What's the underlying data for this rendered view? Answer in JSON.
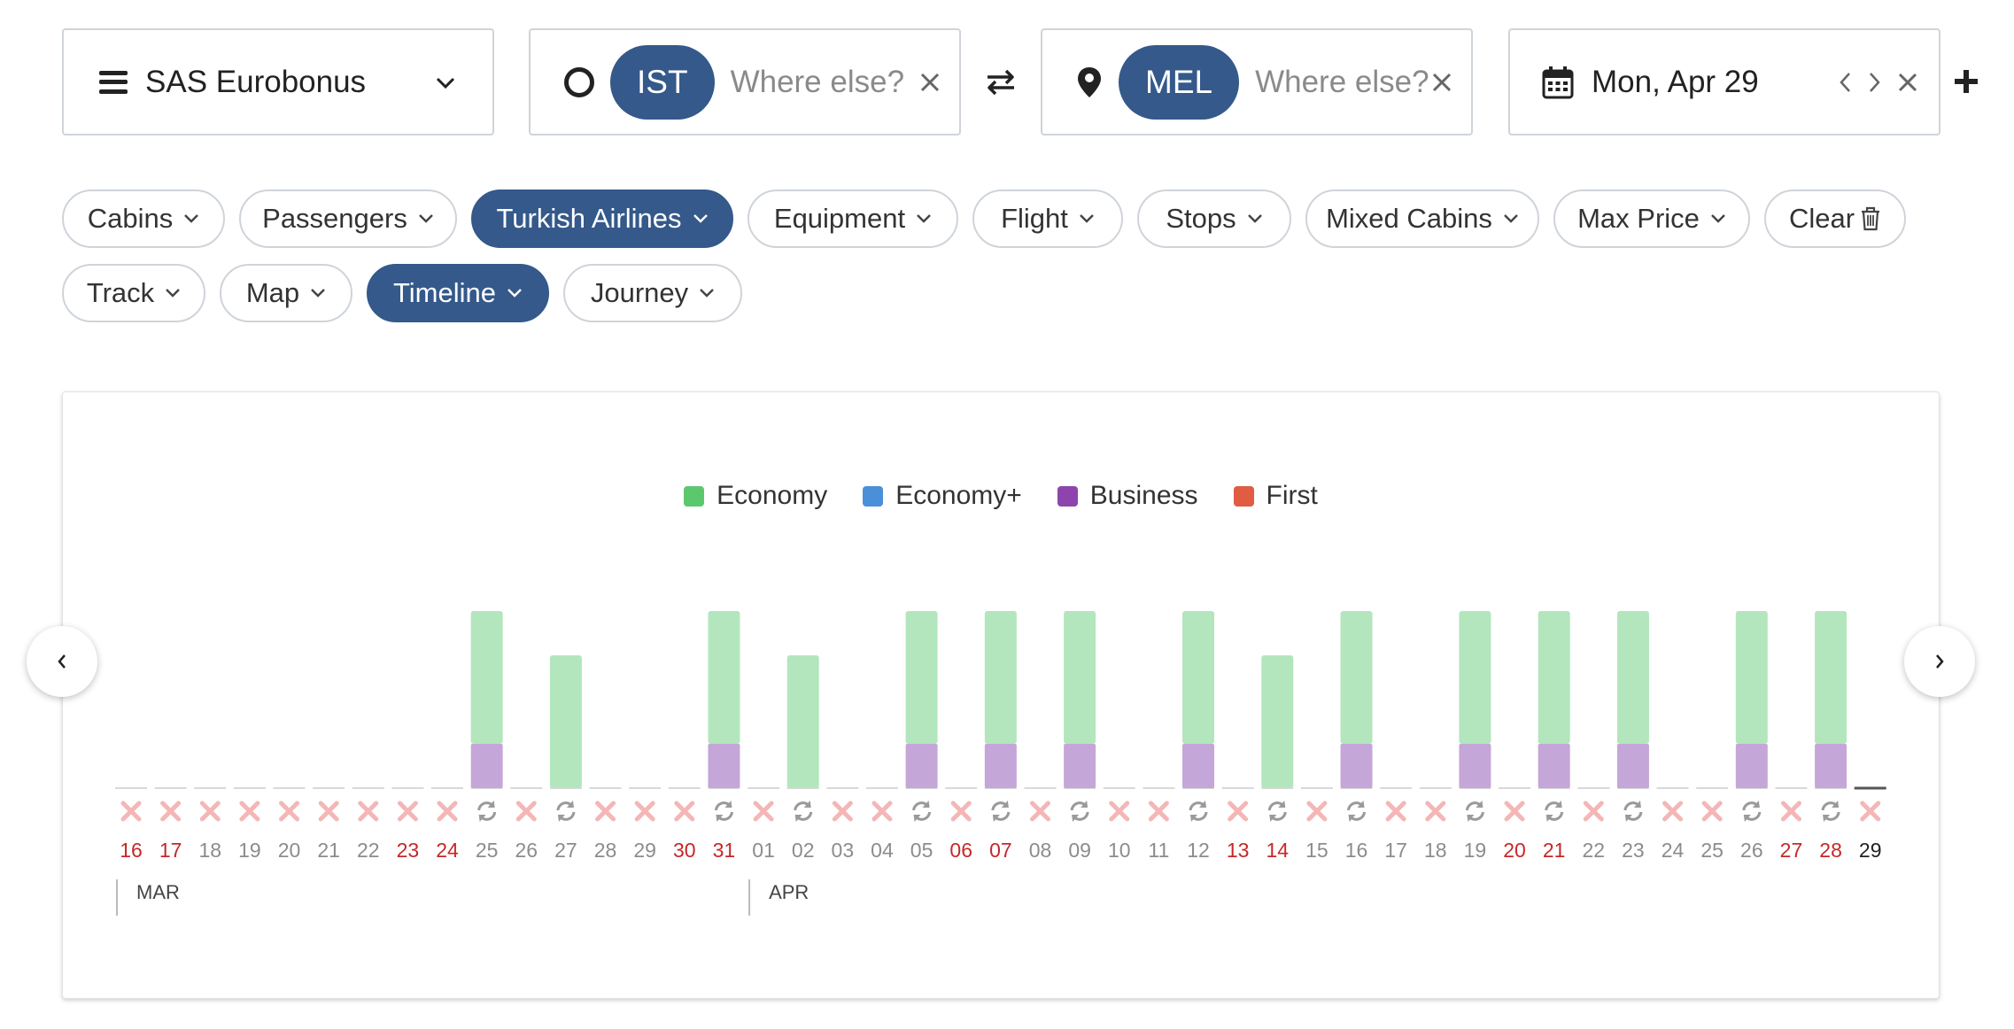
{
  "search": {
    "program": "SAS Eurobonus",
    "origin": {
      "code": "IST",
      "placeholder": "Where else?"
    },
    "destination": {
      "code": "MEL",
      "placeholder": "Where else?"
    },
    "date": "Mon, Apr 29"
  },
  "filters": {
    "row1": [
      {
        "label": "Cabins",
        "active": false
      },
      {
        "label": "Passengers",
        "active": false
      },
      {
        "label": "Turkish Airlines",
        "active": true
      },
      {
        "label": "Equipment",
        "active": false
      },
      {
        "label": "Flight",
        "active": false
      },
      {
        "label": "Stops",
        "active": false
      },
      {
        "label": "Mixed Cabins",
        "active": false
      },
      {
        "label": "Max Price",
        "active": false
      },
      {
        "label": "Clear",
        "active": false
      }
    ],
    "row2": [
      {
        "label": "Track",
        "active": false
      },
      {
        "label": "Map",
        "active": false
      },
      {
        "label": "Timeline",
        "active": true
      },
      {
        "label": "Journey",
        "active": false
      }
    ]
  },
  "colors": {
    "accent": "#34598a",
    "economy": "#b3e6bd",
    "business": "#c5a6d8",
    "red_text": "#c62828",
    "gray_text": "#8c8c8c"
  },
  "legend": [
    {
      "label": "Economy",
      "color": "#5cc86e"
    },
    {
      "label": "Economy+",
      "color": "#4a90d9"
    },
    {
      "label": "Business",
      "color": "#8e44ad"
    },
    {
      "label": "First",
      "color": "#e05d44"
    }
  ],
  "chart_data": {
    "type": "bar",
    "title": "",
    "months": [
      {
        "label": "MAR",
        "start_index": 0
      },
      {
        "label": "APR",
        "start_index": 16
      }
    ],
    "days": [
      {
        "day": "16",
        "status": "none",
        "economy": 0,
        "business": 0,
        "weekend": true
      },
      {
        "day": "17",
        "status": "none",
        "economy": 0,
        "business": 0,
        "weekend": true
      },
      {
        "day": "18",
        "status": "none",
        "economy": 0,
        "business": 0,
        "weekend": false
      },
      {
        "day": "19",
        "status": "none",
        "economy": 0,
        "business": 0,
        "weekend": false
      },
      {
        "day": "20",
        "status": "none",
        "economy": 0,
        "business": 0,
        "weekend": false
      },
      {
        "day": "21",
        "status": "none",
        "economy": 0,
        "business": 0,
        "weekend": false
      },
      {
        "day": "22",
        "status": "none",
        "economy": 0,
        "business": 0,
        "weekend": false
      },
      {
        "day": "23",
        "status": "none",
        "economy": 0,
        "business": 0,
        "weekend": true
      },
      {
        "day": "24",
        "status": "none",
        "economy": 0,
        "business": 0,
        "weekend": true
      },
      {
        "day": "25",
        "status": "avail",
        "economy": 3,
        "business": 1,
        "weekend": false
      },
      {
        "day": "26",
        "status": "none",
        "economy": 0,
        "business": 0,
        "weekend": false
      },
      {
        "day": "27",
        "status": "avail",
        "economy": 3,
        "business": 0,
        "weekend": false
      },
      {
        "day": "28",
        "status": "none",
        "economy": 0,
        "business": 0,
        "weekend": false
      },
      {
        "day": "29",
        "status": "none",
        "economy": 0,
        "business": 0,
        "weekend": false
      },
      {
        "day": "30",
        "status": "none",
        "economy": 0,
        "business": 0,
        "weekend": true
      },
      {
        "day": "31",
        "status": "avail",
        "economy": 3,
        "business": 1,
        "weekend": true
      },
      {
        "day": "01",
        "status": "none",
        "economy": 0,
        "business": 0,
        "weekend": false
      },
      {
        "day": "02",
        "status": "avail",
        "economy": 3,
        "business": 0,
        "weekend": false
      },
      {
        "day": "03",
        "status": "none",
        "economy": 0,
        "business": 0,
        "weekend": false
      },
      {
        "day": "04",
        "status": "none",
        "economy": 0,
        "business": 0,
        "weekend": false
      },
      {
        "day": "05",
        "status": "avail",
        "economy": 3,
        "business": 1,
        "weekend": false
      },
      {
        "day": "06",
        "status": "none",
        "economy": 0,
        "business": 0,
        "weekend": true
      },
      {
        "day": "07",
        "status": "avail",
        "economy": 3,
        "business": 1,
        "weekend": true
      },
      {
        "day": "08",
        "status": "none",
        "economy": 0,
        "business": 0,
        "weekend": false
      },
      {
        "day": "09",
        "status": "avail",
        "economy": 3,
        "business": 1,
        "weekend": false
      },
      {
        "day": "10",
        "status": "none",
        "economy": 0,
        "business": 0,
        "weekend": false
      },
      {
        "day": "11",
        "status": "none",
        "economy": 0,
        "business": 0,
        "weekend": false
      },
      {
        "day": "12",
        "status": "avail",
        "economy": 3,
        "business": 1,
        "weekend": false
      },
      {
        "day": "13",
        "status": "none",
        "economy": 0,
        "business": 0,
        "weekend": true
      },
      {
        "day": "14",
        "status": "avail",
        "economy": 3,
        "business": 0,
        "weekend": true
      },
      {
        "day": "15",
        "status": "none",
        "economy": 0,
        "business": 0,
        "weekend": false
      },
      {
        "day": "16",
        "status": "avail",
        "economy": 3,
        "business": 1,
        "weekend": false
      },
      {
        "day": "17",
        "status": "none",
        "economy": 0,
        "business": 0,
        "weekend": false
      },
      {
        "day": "18",
        "status": "none",
        "economy": 0,
        "business": 0,
        "weekend": false
      },
      {
        "day": "19",
        "status": "avail",
        "economy": 3,
        "business": 1,
        "weekend": false
      },
      {
        "day": "20",
        "status": "none",
        "economy": 0,
        "business": 0,
        "weekend": true
      },
      {
        "day": "21",
        "status": "avail",
        "economy": 3,
        "business": 1,
        "weekend": true
      },
      {
        "day": "22",
        "status": "none",
        "economy": 0,
        "business": 0,
        "weekend": false
      },
      {
        "day": "23",
        "status": "avail",
        "economy": 3,
        "business": 1,
        "weekend": false
      },
      {
        "day": "24",
        "status": "none",
        "economy": 0,
        "business": 0,
        "weekend": false
      },
      {
        "day": "25",
        "status": "none",
        "economy": 0,
        "business": 0,
        "weekend": false
      },
      {
        "day": "26",
        "status": "avail",
        "economy": 3,
        "business": 1,
        "weekend": false
      },
      {
        "day": "27",
        "status": "none",
        "economy": 0,
        "business": 0,
        "weekend": true
      },
      {
        "day": "28",
        "status": "avail",
        "economy": 3,
        "business": 1,
        "weekend": true
      },
      {
        "day": "29",
        "status": "none",
        "economy": 0,
        "business": 0,
        "weekend": false,
        "selected": true
      }
    ]
  }
}
